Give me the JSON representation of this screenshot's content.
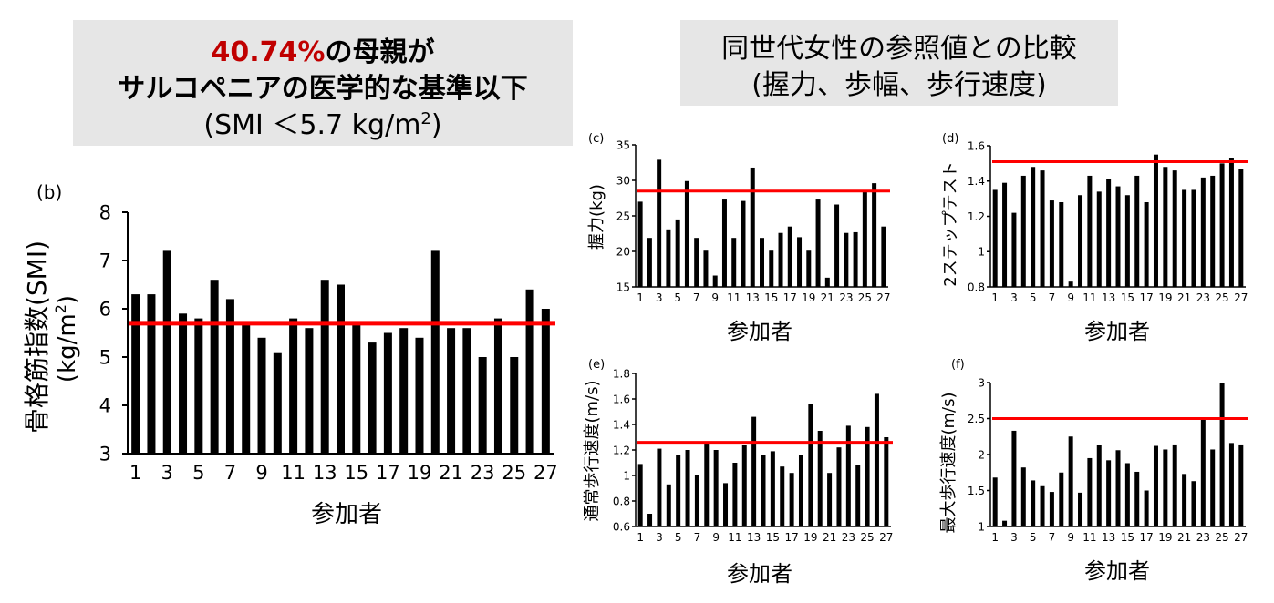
{
  "header_left": {
    "line1_highlight": "40.74%",
    "line1_rest": "の母親が",
    "line2": "サルコペニアの医学的な基準以下",
    "line3_pre": "(SMI ＜5.7 kg/m",
    "line3_sup": "2",
    "line3_post": ")"
  },
  "header_right": {
    "line1": "同世代女性の参照値との比較",
    "line2": "(握力、歩幅、歩行速度)"
  },
  "colors": {
    "bar": "#000000",
    "reference_line": "#ff0000",
    "highlight_text": "#c00000",
    "title_box": "#e6e6e6"
  },
  "chart_data": [
    {
      "id": "b",
      "panel_label": "(b)",
      "type": "bar",
      "ylabel_main": "骨格筋指数(SMI)",
      "ylabel_unit_pre": "(kg/m",
      "ylabel_unit_sup": "2",
      "ylabel_unit_post": ")",
      "xlabel": "参加者",
      "ylim": [
        3,
        8
      ],
      "yticks": [
        "3",
        "4",
        "5",
        "6",
        "7",
        "8"
      ],
      "x": [
        1,
        2,
        3,
        4,
        5,
        6,
        7,
        8,
        9,
        10,
        11,
        12,
        13,
        14,
        15,
        16,
        17,
        18,
        19,
        20,
        21,
        22,
        23,
        24,
        25,
        26,
        27
      ],
      "xtick_labels": [
        "1",
        "3",
        "5",
        "7",
        "9",
        "11",
        "13",
        "15",
        "17",
        "19",
        "21",
        "23",
        "25",
        "27"
      ],
      "values": [
        6.3,
        6.3,
        7.2,
        5.9,
        5.8,
        6.6,
        6.2,
        5.7,
        5.4,
        5.1,
        5.8,
        5.6,
        6.6,
        6.5,
        5.7,
        5.3,
        5.5,
        5.6,
        5.4,
        7.2,
        5.6,
        5.6,
        5.0,
        5.8,
        5.0,
        6.4,
        6.0
      ],
      "reference": 5.7
    },
    {
      "id": "c",
      "panel_label": "(c)",
      "type": "bar",
      "ylabel": "握力(kg)",
      "xlabel": "参加者",
      "ylim": [
        15,
        35
      ],
      "yticks": [
        "15",
        "20",
        "25",
        "30",
        "35"
      ],
      "x": [
        1,
        2,
        3,
        4,
        5,
        6,
        7,
        8,
        9,
        10,
        11,
        12,
        13,
        14,
        15,
        16,
        17,
        18,
        19,
        20,
        21,
        22,
        23,
        24,
        25,
        26,
        27
      ],
      "xtick_labels": [
        "1",
        "3",
        "5",
        "7",
        "9",
        "11",
        "13",
        "15",
        "17",
        "19",
        "21",
        "23",
        "25",
        "27"
      ],
      "values": [
        27.0,
        21.9,
        32.9,
        23.1,
        24.5,
        29.9,
        21.9,
        20.1,
        16.6,
        27.3,
        21.9,
        27.1,
        31.8,
        21.9,
        20.1,
        22.6,
        23.5,
        22.0,
        20.1,
        27.3,
        16.3,
        26.6,
        22.6,
        22.7,
        28.5,
        29.6,
        23.5
      ],
      "reference": 28.5
    },
    {
      "id": "d",
      "panel_label": "(d)",
      "type": "bar",
      "ylabel": "2ステップテスト",
      "xlabel": "参加者",
      "ylim": [
        0.8,
        1.6
      ],
      "yticks": [
        "0.8",
        "1",
        "1.2",
        "1.4",
        "1.6"
      ],
      "x": [
        1,
        2,
        3,
        4,
        5,
        6,
        7,
        8,
        9,
        10,
        11,
        12,
        13,
        14,
        15,
        16,
        17,
        18,
        19,
        20,
        21,
        22,
        23,
        24,
        25,
        26,
        27
      ],
      "xtick_labels": [
        "1",
        "3",
        "5",
        "7",
        "9",
        "11",
        "13",
        "15",
        "17",
        "19",
        "21",
        "23",
        "25",
        "27"
      ],
      "values": [
        1.35,
        1.39,
        1.22,
        1.43,
        1.48,
        1.46,
        1.29,
        1.28,
        0.83,
        1.32,
        1.43,
        1.34,
        1.41,
        1.37,
        1.32,
        1.43,
        1.28,
        1.55,
        1.48,
        1.46,
        1.35,
        1.35,
        1.42,
        1.43,
        1.5,
        1.53,
        1.47
      ],
      "reference": 1.51
    },
    {
      "id": "e",
      "panel_label": "(e)",
      "type": "bar",
      "ylabel": "通常歩行速度(m/s)",
      "xlabel": "参加者",
      "ylim": [
        0.6,
        1.8
      ],
      "yticks": [
        "0.6",
        "0.8",
        "1",
        "1.2",
        "1.4",
        "1.6",
        "1.8"
      ],
      "x": [
        1,
        2,
        3,
        4,
        5,
        6,
        7,
        8,
        9,
        10,
        11,
        12,
        13,
        14,
        15,
        16,
        17,
        18,
        19,
        20,
        21,
        22,
        23,
        24,
        25,
        26,
        27
      ],
      "xtick_labels": [
        "1",
        "3",
        "5",
        "7",
        "9",
        "11",
        "13",
        "15",
        "17",
        "19",
        "21",
        "23",
        "25",
        "27"
      ],
      "values": [
        1.09,
        0.7,
        1.21,
        0.93,
        1.16,
        1.2,
        1.0,
        1.25,
        1.2,
        0.94,
        1.1,
        1.24,
        1.46,
        1.16,
        1.19,
        1.07,
        1.02,
        1.16,
        1.56,
        1.35,
        1.02,
        1.22,
        1.39,
        1.08,
        1.38,
        1.64,
        1.3
      ],
      "reference": 1.26
    },
    {
      "id": "f",
      "panel_label": "(f)",
      "type": "bar",
      "ylabel": "最大歩行速度(m/s)",
      "xlabel": "参加者",
      "ylim": [
        1,
        3
      ],
      "yticks": [
        "1",
        "1.5",
        "2",
        "2.5",
        "3"
      ],
      "x": [
        1,
        2,
        3,
        4,
        5,
        6,
        7,
        8,
        9,
        10,
        11,
        12,
        13,
        14,
        15,
        16,
        17,
        18,
        19,
        20,
        21,
        22,
        23,
        24,
        25,
        26,
        27
      ],
      "xtick_labels": [
        "1",
        "3",
        "5",
        "7",
        "9",
        "11",
        "13",
        "15",
        "17",
        "19",
        "21",
        "23",
        "25",
        "27"
      ],
      "values": [
        1.68,
        1.08,
        2.33,
        1.82,
        1.64,
        1.56,
        1.48,
        1.75,
        2.25,
        1.47,
        1.95,
        2.13,
        1.92,
        2.06,
        1.88,
        1.76,
        1.5,
        2.12,
        2.07,
        2.14,
        1.73,
        1.63,
        2.5,
        2.07,
        3.0,
        2.16,
        2.14
      ],
      "reference": 2.5
    }
  ]
}
